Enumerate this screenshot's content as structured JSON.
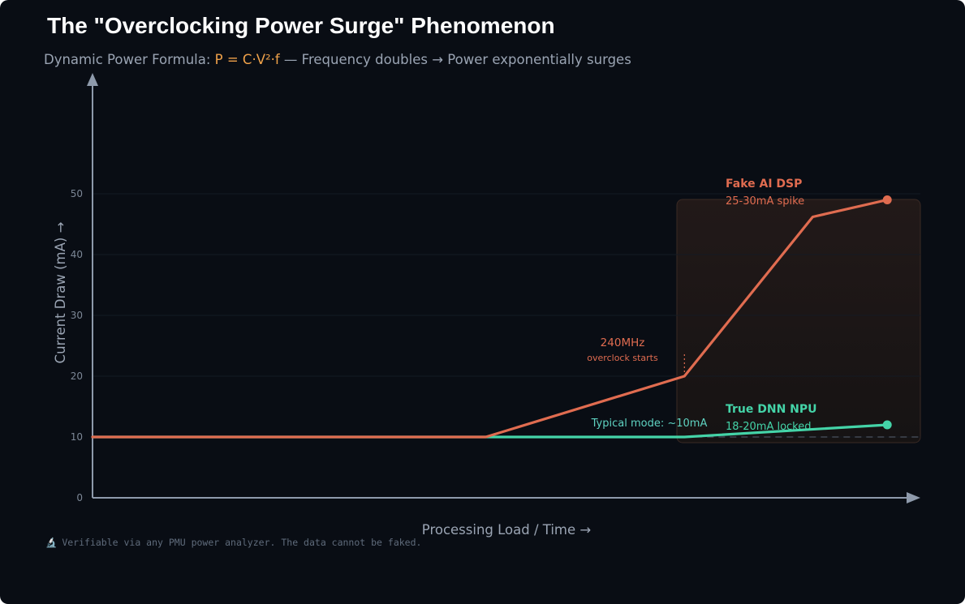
{
  "title": "The \"Overclocking Power Surge\" Phenomenon",
  "subtitle": {
    "prefix": "Dynamic Power Formula: ",
    "formula": "P = C·V²·f",
    "suffix": " — Frequency doubles → Power exponentially surges"
  },
  "footnote": {
    "icon": "microscope-icon",
    "icon_glyph": "🔬",
    "text": "Verifiable via any PMU power analyzer. The data cannot be faked."
  },
  "colors": {
    "background": "#090d14",
    "axis": "#8e9aab",
    "fake_dsp": "#e06c50",
    "true_npu": "#44d4a8",
    "formula": "#f0a24a",
    "text_muted": "#9aa4b3"
  },
  "chart_data": {
    "type": "line",
    "title": "The \"Overclocking Power Surge\" Phenomenon",
    "xlabel": "Processing Load / Time →",
    "ylabel": "Current Draw (mA) →",
    "xlim": [
      0,
      100
    ],
    "ylim": [
      0,
      50
    ],
    "yticks": [
      0,
      10,
      20,
      30,
      40,
      50
    ],
    "grid": false,
    "series": [
      {
        "name": "Fake AI DSP",
        "color": "#e06c50",
        "x": [
          0,
          47.5,
          71.5,
          87,
          96
        ],
        "y": [
          10,
          10,
          20,
          46.2,
          49
        ]
      },
      {
        "name": "True DNN NPU",
        "color": "#44d4a8",
        "x": [
          0,
          71.5,
          96
        ],
        "y": [
          10,
          10,
          12
        ]
      }
    ],
    "annotations": {
      "fake_label": "Fake AI DSP",
      "fake_sub": "25-30mA spike",
      "true_label": "True DNN NPU",
      "true_sub": "18-20mA locked",
      "freq_label": "240MHz",
      "freq_sub": "overclock starts",
      "typical_label": "Typical mode: ~10mA"
    },
    "baseline_y": 10
  }
}
